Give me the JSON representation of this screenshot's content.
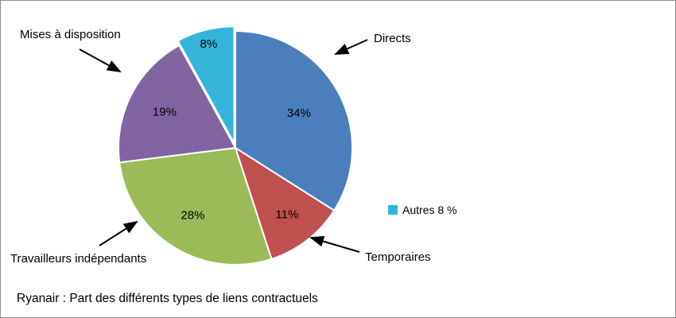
{
  "chart_data": {
    "type": "pie",
    "title": "Ryanair : Part des différents types de liens contractuels",
    "direction": "clockwise",
    "start_angle_deg": 0,
    "slices": [
      {
        "label": "Directs",
        "value": 34,
        "pct_label": "34%",
        "color": "#4A7EBD",
        "label_r": 0.62,
        "explode": 0
      },
      {
        "label": "Temporaires",
        "value": 11,
        "pct_label": "11%",
        "color": "#C0504D",
        "label_r": 0.72,
        "explode": 0
      },
      {
        "label": "Travailleurs indépendants",
        "value": 28,
        "pct_label": "28%",
        "color": "#9BBB59",
        "label_r": 0.68,
        "explode": 0
      },
      {
        "label": "Mises à disposition",
        "value": 19,
        "pct_label": "19%",
        "color": "#8064A2",
        "label_r": 0.68,
        "explode": 0
      },
      {
        "label": "Autres",
        "value": 8,
        "pct_label": "8%",
        "color": "#35B4DB",
        "label_r": 0.88,
        "explode": 6
      }
    ],
    "legend": {
      "label": "Autres 8 %",
      "color": "#35B4DB",
      "position": "right"
    }
  }
}
